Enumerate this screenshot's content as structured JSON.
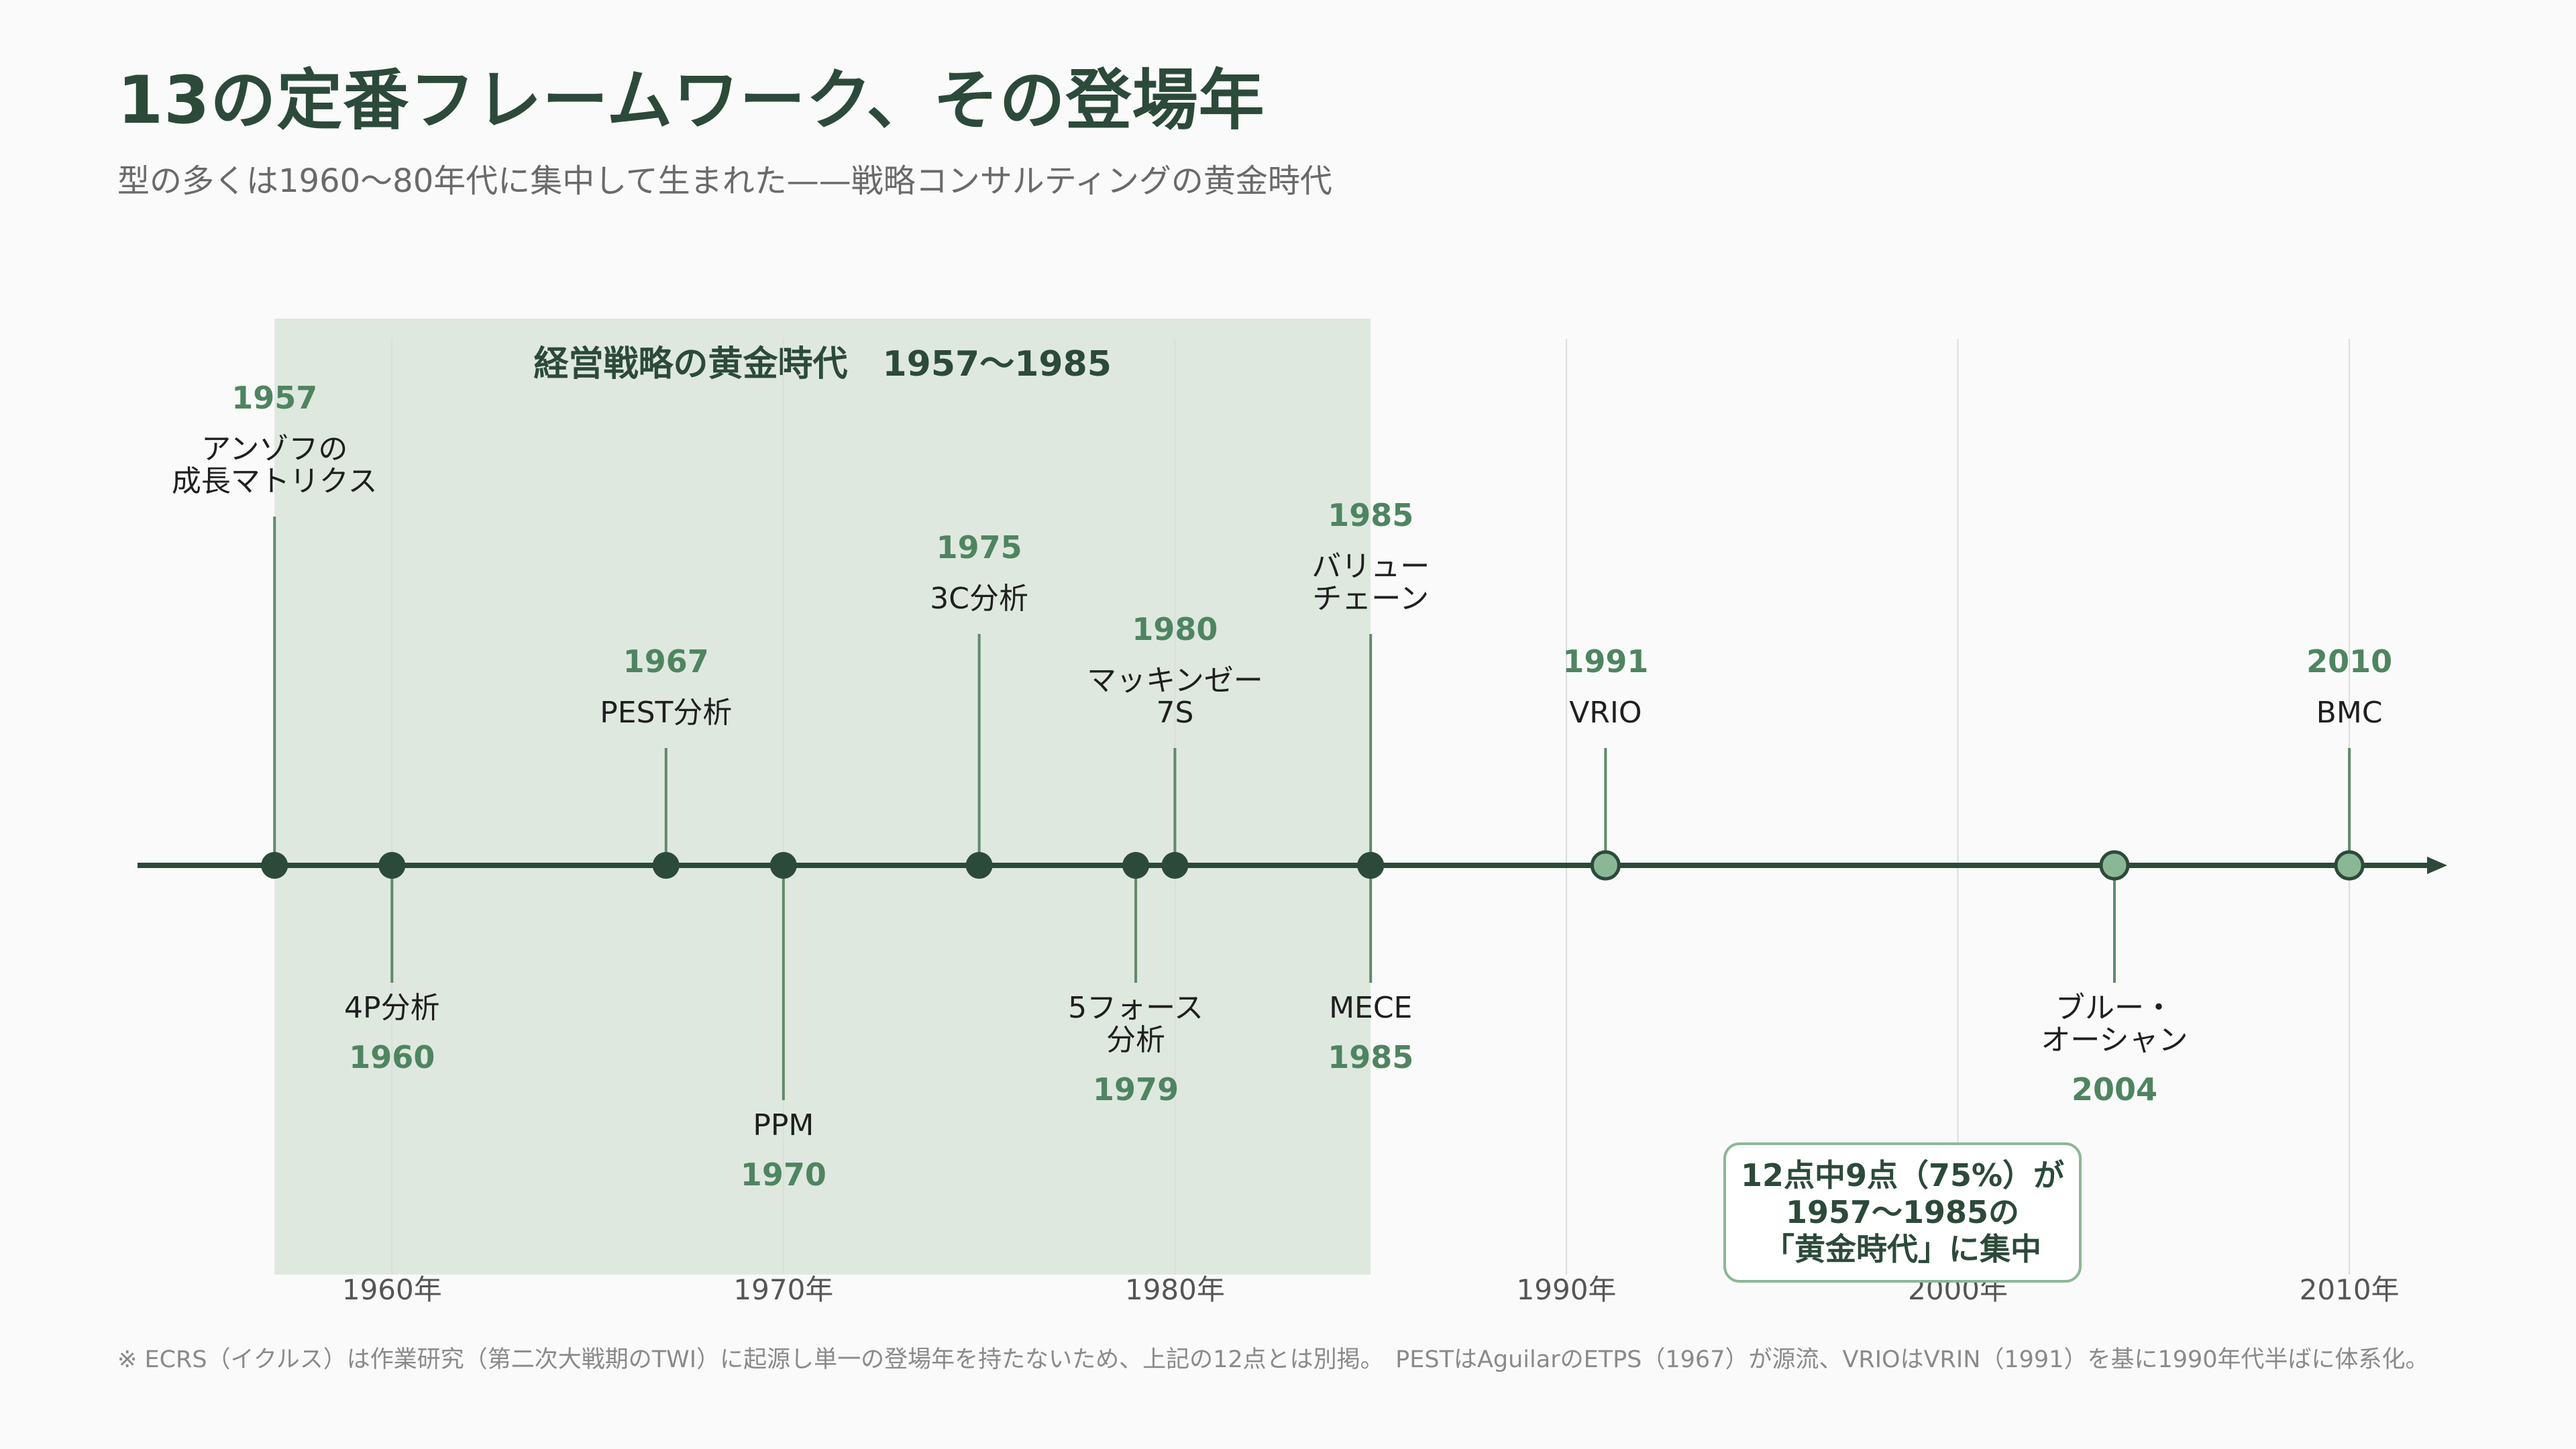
{
  "page": {
    "title": "13の定番フレームワーク、その登場年",
    "subtitle": "型の多くは1960〜80年代に集中して生まれた——戦略コンサルティングの黄金時代",
    "footnote": "※ ECRS（イクルス）は作業研究（第二次大戦期のTWI）に起源し単一の登場年を持たないため、上記の12点とは別掲。　PESTはAguilarのETPS（1967）が源流、VRIOはVRIN（1991）を基に1990年代半ばに体系化。"
  },
  "chart_data": {
    "type": "timeline",
    "x_range": [
      1953.5,
      2012.5
    ],
    "axis_ticks": [
      {
        "year": 1960,
        "label": "1960年"
      },
      {
        "year": 1970,
        "label": "1970年"
      },
      {
        "year": 1980,
        "label": "1980年"
      },
      {
        "year": 1990,
        "label": "1990年"
      },
      {
        "year": 2000,
        "label": "2000年"
      },
      {
        "year": 2010,
        "label": "2010年"
      }
    ],
    "highlight_band": {
      "start": 1957,
      "end": 1985,
      "label": "経営戦略の黄金時代　1957〜1985"
    },
    "events": [
      {
        "year": 1957,
        "year_label": "1957",
        "lines": [
          "アンゾフの",
          "成長マトリクス"
        ],
        "side": "above",
        "level": 3,
        "golden": true
      },
      {
        "year": 1960,
        "year_label": "1960",
        "lines": [
          "4P分析"
        ],
        "side": "below",
        "level": 1,
        "golden": true
      },
      {
        "year": 1967,
        "year_label": "1967",
        "lines": [
          "PEST分析"
        ],
        "side": "above",
        "level": 1,
        "golden": true
      },
      {
        "year": 1970,
        "year_label": "1970",
        "lines": [
          "PPM"
        ],
        "side": "below",
        "level": 3,
        "golden": true
      },
      {
        "year": 1975,
        "year_label": "1975",
        "lines": [
          "3C分析"
        ],
        "side": "above",
        "level": 2,
        "golden": true
      },
      {
        "year": 1979,
        "year_label": "1979",
        "lines": [
          "5フォース",
          "分析"
        ],
        "side": "below",
        "level": 2,
        "golden": true
      },
      {
        "year": 1980,
        "year_label": "1980",
        "lines": [
          "マッキンゼー",
          "7S"
        ],
        "side": "above",
        "level": 1,
        "golden": true
      },
      {
        "year": 1985,
        "year_label": "1985",
        "lines": [
          "バリュー",
          "チェーン"
        ],
        "side": "above",
        "level": 2,
        "golden": true
      },
      {
        "year": 1985,
        "year_label": "1985",
        "lines": [
          "MECE"
        ],
        "side": "below",
        "level": 1,
        "golden": true
      },
      {
        "year": 1991,
        "year_label": "1991",
        "lines": [
          "VRIO"
        ],
        "side": "above",
        "level": 1,
        "golden": false
      },
      {
        "year": 2004,
        "year_label": "2004",
        "lines": [
          "ブルー・",
          "オーシャン"
        ],
        "side": "below",
        "level": 2,
        "golden": false
      },
      {
        "year": 2010,
        "year_label": "2010",
        "lines": [
          "BMC"
        ],
        "side": "above",
        "level": 1,
        "golden": false
      }
    ],
    "callout": [
      "12点中9点（75%）が",
      "1957〜1985の",
      "「黄金時代」に集中"
    ],
    "colors": {
      "dark": "#2c4a3a",
      "accent": "#4e8560",
      "stem": "#5f8a6a",
      "band": "#dfe8df",
      "light_dot": "#8bb894",
      "grid": "#dcdcdc",
      "axis_label": "#555555"
    }
  }
}
